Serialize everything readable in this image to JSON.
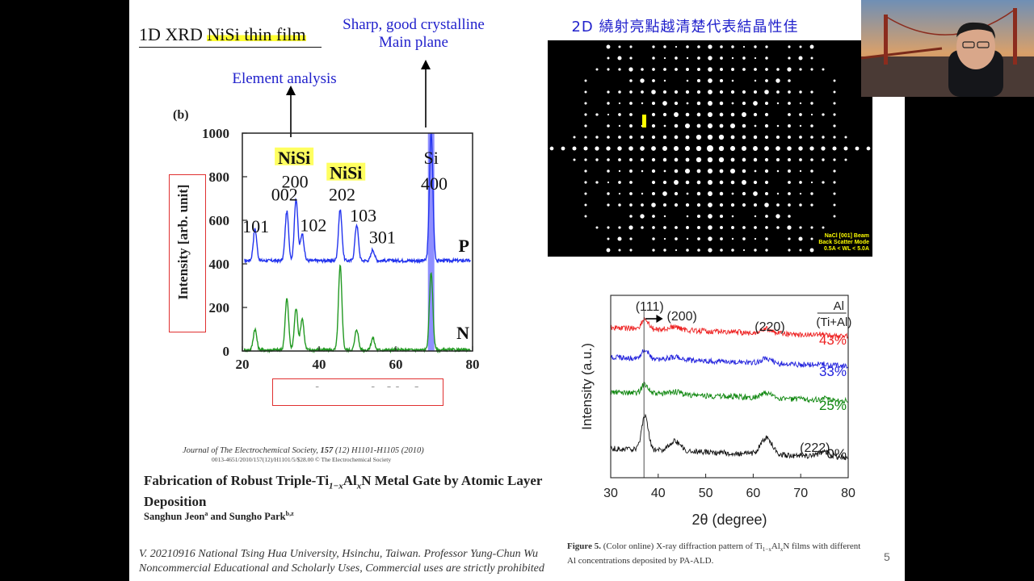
{
  "slide": {
    "title_prefix": "1D XRD ",
    "title_highlight": "NiSi thin film",
    "annotation_sharp_line1": "Sharp, good crystalline",
    "annotation_sharp_line2": "Main plane",
    "annotation_element": "Element analysis",
    "annotation_2d": "2D 繞射亮點越清楚代表結晶性佳",
    "page_number": "5"
  },
  "xrd_chart_b": {
    "panel_label": "(b)",
    "ylabel": "Intensity [arb. unit]",
    "xlabel": "2 theta angle [deg]",
    "x_ticks": [
      "20",
      "40",
      "60",
      "80"
    ],
    "y_ticks": [
      "0",
      "200",
      "400",
      "600",
      "800",
      "1000"
    ],
    "peak_labels": {
      "nisi_a": "NiSi",
      "p200": "200",
      "p002": "002",
      "p101": "101",
      "p102": "102",
      "nisi_b": "NiSi",
      "p202": "202",
      "p103": "103",
      "p301": "301",
      "si": "Si",
      "p400": "400"
    },
    "series_p": "P",
    "series_n": "N"
  },
  "chart_data": [
    {
      "type": "line",
      "title": "",
      "xlabel": "2 theta angle [deg]",
      "ylabel": "Intensity [arb. unit]",
      "xlim": [
        20,
        80
      ],
      "ylim": [
        0,
        1000
      ],
      "series": [
        {
          "name": "P",
          "color": "#2233ee",
          "baseline": 415,
          "peaks": [
            [
              23.3,
              560
            ],
            [
              31.6,
              640
            ],
            [
              34.0,
              700
            ],
            [
              35.6,
              540
            ],
            [
              45.5,
              650
            ],
            [
              49.8,
              580
            ],
            [
              54.0,
              465
            ],
            [
              69.2,
              1000
            ]
          ]
        },
        {
          "name": "N",
          "color": "#229922",
          "baseline": 5,
          "peaks": [
            [
              23.3,
              100
            ],
            [
              31.6,
              240
            ],
            [
              34.0,
              195
            ],
            [
              35.6,
              150
            ],
            [
              45.5,
              390
            ],
            [
              49.8,
              100
            ],
            [
              54.0,
              60
            ],
            [
              69.2,
              360
            ]
          ]
        }
      ]
    },
    {
      "type": "line",
      "title": "",
      "xlabel": "2θ (degree)",
      "ylabel": "Intensity (a.u.)",
      "xlim": [
        30,
        80
      ],
      "series": [
        {
          "name": "43%",
          "color": "#ee2222"
        },
        {
          "name": "33%",
          "color": "#2222dd"
        },
        {
          "name": "25%",
          "color": "#118811"
        },
        {
          "name": "0%",
          "color": "#111111"
        }
      ]
    }
  ],
  "tialn_chart": {
    "ylabel": "Intensity (a.u.)",
    "xlabel": "2θ (degree)",
    "x_ticks": [
      "30",
      "40",
      "50",
      "60",
      "70",
      "80"
    ],
    "legend_top": "Al",
    "legend_bottom": "(Ti+Al)",
    "peaks": {
      "p111": "(111)",
      "p200": "(200)",
      "p220": "(220)",
      "p222": "(222)"
    },
    "series_labels": {
      "s43": "43%",
      "s33": "33%",
      "s25": "25%",
      "s0": "0%"
    }
  },
  "diffraction": {
    "caption_line1": "NaCl [001] Beam",
    "caption_line2": "Back Scatter Mode",
    "caption_line3": "0.5A < WL < 5.0A"
  },
  "reference": {
    "journal_name": "Journal of The Electrochemical Society,",
    "journal_vol": "157",
    "journal_rest": "(12) H1101-H1105 (2010)",
    "doi": "0013-4651/2010/157(12)/H1101/5/$28.00 © The Electrochemical Society",
    "paper_title_a": "Fabrication of Robust Triple-Ti",
    "paper_title_sub1": "1−x",
    "paper_title_b": "Al",
    "paper_title_sub2": "x",
    "paper_title_c": "N Metal Gate by Atomic Layer Deposition",
    "author1": "Sanghun Jeon",
    "author1_sup": "a",
    "author_and": " and ",
    "author2": "Sungho Park",
    "author2_sup": "b,z"
  },
  "figure5": {
    "label": "Figure 5.",
    "caption_a": " (Color online) X-ray diffraction pattern of Ti",
    "sub1": "1−x",
    "caption_b": "Al",
    "sub2": "x",
    "caption_c": "N films with different Al concentrations deposited by PA-ALD."
  },
  "footer": {
    "line1": "V. 20210916 National Tsing Hua University, Hsinchu, Taiwan. Professor Yung-Chun Wu",
    "line2": "Noncommercial Educational and Scholarly Uses, Commercial uses are strictly prohibited"
  }
}
